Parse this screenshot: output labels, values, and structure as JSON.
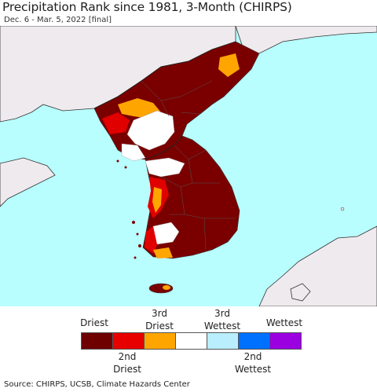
{
  "header": {
    "title": "Precipitation Rank since 1981, 3-Month (CHIRPS)",
    "subtitle": "Dec. 6 - Mar. 5, 2022 [final]"
  },
  "map": {
    "region": "Korean Peninsula",
    "colors": {
      "ocean": "#b9fefe",
      "land_other": "#eeeaee",
      "border": "#333333",
      "driest": "#7a0000",
      "second_driest": "#e00000",
      "third_driest": "#ffa500",
      "normal": "#ffffff"
    }
  },
  "legend": {
    "top_labels": [
      "Driest",
      "3rd\nDriest",
      "3rd\nWettest",
      "Wettest"
    ],
    "bottom_labels": [
      "2nd\nDriest",
      "2nd\nWettest"
    ],
    "colors": [
      "#6e0000",
      "#e60000",
      "#ffa500",
      "#ffffff",
      "#b9eefe",
      "#0070ff",
      "#9b00e0"
    ]
  },
  "source": "Source: CHIRPS, UCSB, Climate Hazards Center"
}
